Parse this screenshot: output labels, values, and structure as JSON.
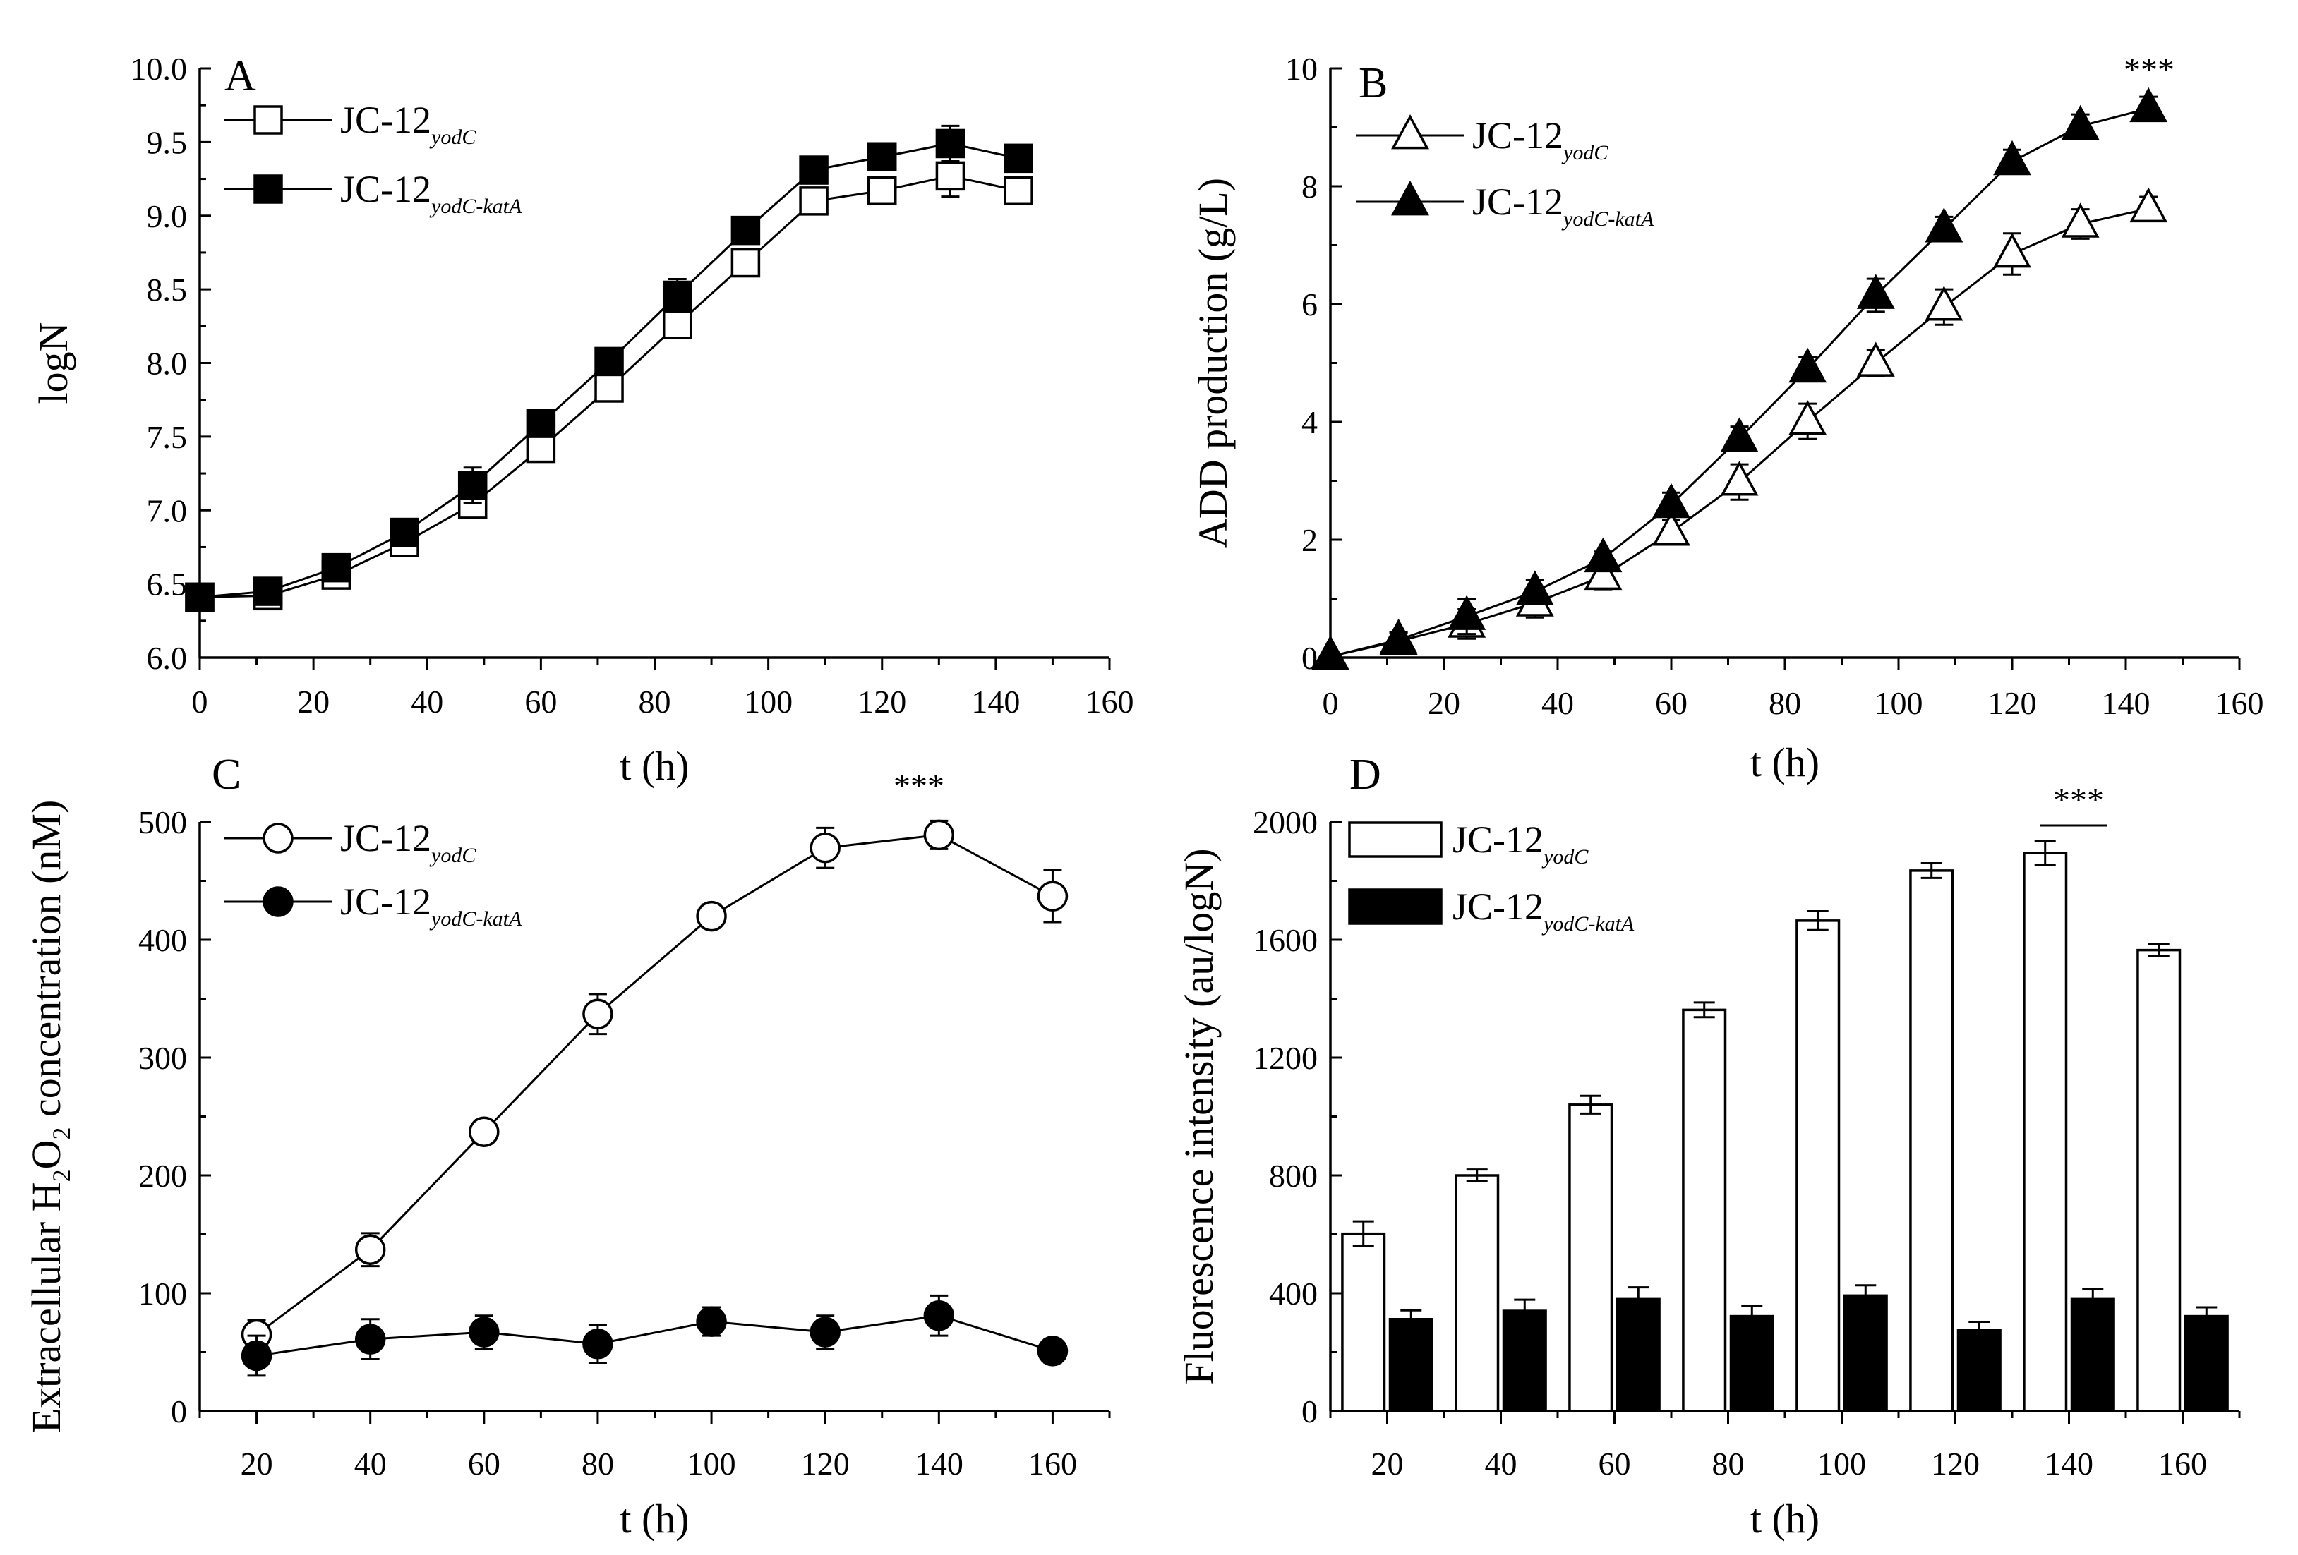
{
  "chart_data": [
    {
      "panel": "A",
      "type": "line",
      "xlabel": "t (h)",
      "ylabel": "logN",
      "xlim": [
        0,
        160
      ],
      "ylim": [
        6.0,
        10.0
      ],
      "xticks": [
        "0",
        "20",
        "40",
        "60",
        "80",
        "100",
        "120",
        "140",
        "160"
      ],
      "yticks": [
        "6.0",
        "6.5",
        "7.0",
        "7.5",
        "8.0",
        "8.5",
        "9.0",
        "9.5",
        "10.0"
      ],
      "legend": "top-left",
      "x": [
        0,
        12,
        24,
        36,
        48,
        60,
        72,
        84,
        96,
        108,
        120,
        132,
        144
      ],
      "series": [
        {
          "name": "JC-12",
          "sub": "yodC",
          "marker": "square-open",
          "values": [
            6.41,
            6.42,
            6.56,
            6.78,
            7.04,
            7.42,
            7.83,
            8.26,
            8.68,
            9.1,
            9.17,
            9.27,
            9.17
          ],
          "errors": [
            0.05,
            0.06,
            0.06,
            0.07,
            0.07,
            0.07,
            0.07,
            0.08,
            0.05,
            0.08,
            0.06,
            0.14,
            0.09
          ]
        },
        {
          "name": "JC-12",
          "sub": "yodC-katA",
          "marker": "square-filled",
          "values": [
            6.41,
            6.45,
            6.61,
            6.85,
            7.17,
            7.59,
            8.01,
            8.46,
            8.9,
            9.31,
            9.4,
            9.49,
            9.39
          ],
          "errors": [
            0.05,
            0.06,
            0.06,
            0.06,
            0.12,
            0.07,
            0.06,
            0.11,
            0.05,
            0.08,
            0.07,
            0.12,
            0.06
          ]
        }
      ]
    },
    {
      "panel": "B",
      "type": "line",
      "xlabel": "t (h)",
      "ylabel": "ADD production (g/L)",
      "xlim": [
        0,
        160
      ],
      "ylim": [
        0,
        10
      ],
      "xticks": [
        "0",
        "20",
        "40",
        "60",
        "80",
        "100",
        "120",
        "140",
        "160"
      ],
      "yticks": [
        "0",
        "2",
        "4",
        "6",
        "8",
        "10"
      ],
      "legend": "top-left",
      "annotation": "***",
      "x": [
        0,
        12,
        24,
        36,
        48,
        60,
        72,
        84,
        96,
        108,
        120,
        132,
        144
      ],
      "series": [
        {
          "name": "JC-12",
          "sub": "yodC",
          "marker": "triangle-open",
          "values": [
            0.02,
            0.28,
            0.57,
            0.93,
            1.38,
            2.13,
            2.98,
            4.01,
            5.0,
            5.95,
            6.85,
            7.36,
            7.62
          ],
          "errors": [
            0.03,
            0.15,
            0.25,
            0.25,
            0.22,
            0.2,
            0.3,
            0.3,
            0.22,
            0.3,
            0.35,
            0.25,
            0.2
          ]
        },
        {
          "name": "JC-12",
          "sub": "yodC-katA",
          "marker": "triangle-filled",
          "values": [
            0.02,
            0.3,
            0.7,
            1.12,
            1.68,
            2.6,
            3.72,
            4.9,
            6.15,
            7.28,
            8.42,
            9.02,
            9.32
          ],
          "errors": [
            0.03,
            0.12,
            0.3,
            0.2,
            0.12,
            0.2,
            0.2,
            0.2,
            0.28,
            0.2,
            0.2,
            0.2,
            0.2
          ]
        }
      ]
    },
    {
      "panel": "C",
      "type": "line",
      "xlabel": "t (h)",
      "ylabel": "Extracellular H2O2 concentration (nM)",
      "ylabel_parts": [
        "Extracellular H",
        "2",
        "O",
        "2",
        " concentration (nM)"
      ],
      "xlim": [
        10,
        170
      ],
      "ylim": [
        0,
        500
      ],
      "xticks": [
        "20",
        "40",
        "60",
        "80",
        "100",
        "120",
        "140",
        "160"
      ],
      "yticks": [
        "0",
        "100",
        "200",
        "300",
        "400",
        "500"
      ],
      "legend": "top-left",
      "annotation": "***",
      "x": [
        20,
        40,
        60,
        80,
        100,
        120,
        140,
        160
      ],
      "series": [
        {
          "name": "JC-12",
          "sub": "yodC",
          "marker": "circle-open",
          "values": [
            65,
            137,
            237,
            337,
            420,
            478,
            489,
            437
          ],
          "errors": [
            12,
            14,
            10,
            17,
            10,
            17,
            12,
            22
          ]
        },
        {
          "name": "JC-12",
          "sub": "yodC-katA",
          "marker": "circle-filled",
          "values": [
            47,
            61,
            67,
            57,
            76,
            67,
            81,
            51
          ],
          "errors": [
            17,
            17,
            14,
            16,
            12,
            14,
            17,
            10
          ]
        }
      ]
    },
    {
      "panel": "D",
      "type": "bar",
      "xlabel": "t (h)",
      "ylabel": "Fluorescence intensity (au/logN)",
      "xlim": [
        10,
        170
      ],
      "ylim": [
        0,
        2000
      ],
      "xticks": [
        "20",
        "40",
        "60",
        "80",
        "100",
        "120",
        "140",
        "160"
      ],
      "yticks": [
        "0",
        "400",
        "800",
        "1200",
        "1600",
        "2000"
      ],
      "legend": "top-left",
      "annotation": "***",
      "categories": [
        "20",
        "40",
        "60",
        "80",
        "100",
        "120",
        "140",
        "160"
      ],
      "series": [
        {
          "name": "JC-12",
          "sub": "yodC",
          "fill": "#ffffff",
          "values": [
            602,
            800,
            1040,
            1362,
            1665,
            1835,
            1895,
            1565
          ],
          "errors": [
            42,
            20,
            30,
            25,
            32,
            25,
            40,
            20
          ]
        },
        {
          "name": "JC-12",
          "sub": "yodC-katA",
          "fill": "#000000",
          "values": [
            312,
            340,
            380,
            322,
            392,
            275,
            380,
            322
          ],
          "errors": [
            30,
            38,
            40,
            35,
            35,
            28,
            35,
            30
          ]
        }
      ]
    }
  ]
}
